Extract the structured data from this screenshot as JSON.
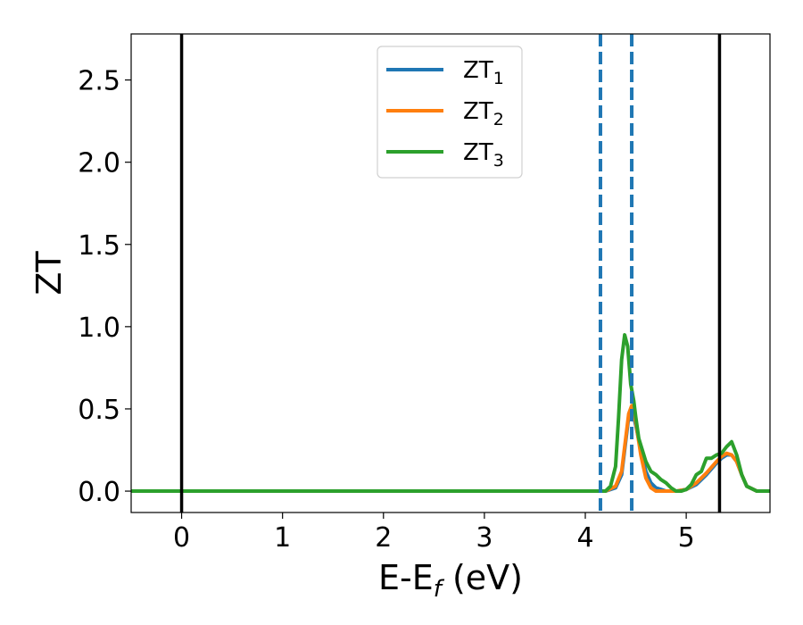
{
  "chart_data": {
    "type": "line",
    "xlabel_main": "E-E",
    "xlabel_sub": "f",
    "xlabel_unit": " (eV)",
    "ylabel": "ZT",
    "xlim": [
      -0.5,
      5.83
    ],
    "ylim": [
      -0.13,
      2.78
    ],
    "xticks": [
      0,
      1,
      2,
      3,
      4,
      5
    ],
    "yticks": [
      0.0,
      0.5,
      1.0,
      1.5,
      2.0,
      2.5
    ],
    "xtick_labels": [
      "0",
      "1",
      "2",
      "3",
      "4",
      "5"
    ],
    "ytick_labels": [
      "0.0",
      "0.5",
      "1.0",
      "1.5",
      "2.0",
      "2.5"
    ],
    "legend_position": "top-center",
    "vlines_solid": [
      0.0,
      5.33
    ],
    "vlines_dashed": [
      4.15,
      4.46
    ],
    "series": [
      {
        "name": "ZT",
        "sub": "1",
        "color": "#1f77b4",
        "x": [
          -0.5,
          4.1,
          4.2,
          4.3,
          4.36,
          4.4,
          4.43,
          4.46,
          4.5,
          4.55,
          4.6,
          4.65,
          4.7,
          4.75,
          4.8,
          4.9,
          5.0,
          5.1,
          5.2,
          5.3,
          5.35,
          5.4,
          5.45,
          5.5,
          5.55,
          5.6,
          5.7,
          5.83
        ],
        "y": [
          0.0,
          0.0,
          0.0,
          0.02,
          0.1,
          0.3,
          0.45,
          0.5,
          0.4,
          0.25,
          0.12,
          0.05,
          0.02,
          0.01,
          0.0,
          0.0,
          0.01,
          0.04,
          0.1,
          0.17,
          0.2,
          0.22,
          0.22,
          0.18,
          0.1,
          0.03,
          0.0,
          0.0
        ]
      },
      {
        "name": "ZT",
        "sub": "2",
        "color": "#ff7f0e",
        "x": [
          -0.5,
          4.1,
          4.2,
          4.3,
          4.36,
          4.4,
          4.43,
          4.46,
          4.5,
          4.55,
          4.6,
          4.65,
          4.7,
          4.75,
          4.8,
          4.9,
          5.0,
          5.1,
          5.2,
          5.3,
          5.35,
          5.4,
          5.45,
          5.5,
          5.55,
          5.6,
          5.7,
          5.83
        ],
        "y": [
          0.0,
          0.0,
          0.0,
          0.03,
          0.12,
          0.32,
          0.47,
          0.52,
          0.42,
          0.22,
          0.08,
          0.02,
          0.0,
          0.0,
          0.0,
          0.0,
          0.01,
          0.05,
          0.11,
          0.18,
          0.21,
          0.23,
          0.22,
          0.18,
          0.1,
          0.03,
          0.0,
          0.0
        ]
      },
      {
        "name": "ZT",
        "sub": "3",
        "color": "#2ca02c",
        "x": [
          -0.5,
          4.1,
          4.2,
          4.25,
          4.3,
          4.33,
          4.36,
          4.39,
          4.42,
          4.45,
          4.48,
          4.5,
          4.53,
          4.56,
          4.6,
          4.65,
          4.7,
          4.75,
          4.8,
          4.85,
          4.9,
          4.95,
          5.0,
          5.05,
          5.1,
          5.15,
          5.2,
          5.25,
          5.3,
          5.35,
          5.4,
          5.45,
          5.5,
          5.55,
          5.6,
          5.7,
          5.83
        ],
        "y": [
          0.0,
          0.0,
          0.0,
          0.03,
          0.15,
          0.45,
          0.8,
          0.95,
          0.88,
          0.65,
          0.55,
          0.45,
          0.32,
          0.26,
          0.18,
          0.12,
          0.1,
          0.07,
          0.05,
          0.02,
          0.0,
          0.0,
          0.01,
          0.04,
          0.1,
          0.12,
          0.2,
          0.2,
          0.22,
          0.23,
          0.27,
          0.3,
          0.22,
          0.1,
          0.03,
          0.0,
          0.0
        ]
      }
    ]
  }
}
